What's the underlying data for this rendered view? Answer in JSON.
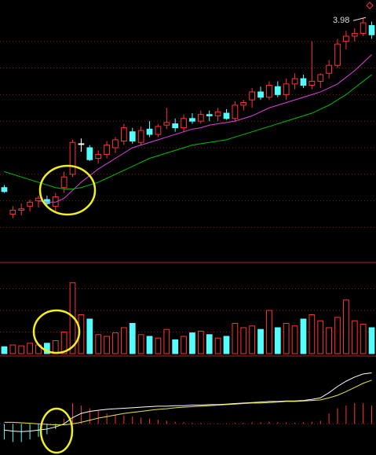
{
  "chart_data": [
    {
      "type": "candlestick",
      "up_color": "#ff3232",
      "down_color": "#54fcfc",
      "flat_color": "#ffffff",
      "open": [
        2.7,
        2.5,
        2.53,
        2.56,
        2.6,
        2.61,
        2.56,
        2.7,
        2.8,
        3.03,
        3.0,
        2.92,
        2.95,
        3.0,
        3.05,
        3.12,
        3.04,
        3.14,
        3.1,
        3.17,
        3.18,
        3.15,
        3.22,
        3.2,
        3.25,
        3.24,
        3.26,
        3.22,
        3.32,
        3.36,
        3.42,
        3.38,
        3.46,
        3.4,
        3.48,
        3.52,
        3.47,
        3.5,
        3.56,
        3.62,
        3.8,
        3.84,
        3.86,
        3.92
      ],
      "high": [
        2.72,
        2.56,
        2.58,
        2.61,
        2.64,
        2.64,
        2.66,
        2.82,
        3.06,
        3.07,
        3.02,
        2.98,
        3.05,
        3.08,
        3.18,
        3.15,
        3.16,
        3.2,
        3.18,
        3.3,
        3.22,
        3.25,
        3.26,
        3.28,
        3.28,
        3.3,
        3.29,
        3.35,
        3.36,
        3.45,
        3.46,
        3.5,
        3.5,
        3.52,
        3.56,
        3.55,
        3.8,
        3.56,
        3.66,
        3.82,
        3.88,
        3.9,
        3.98,
        3.95
      ],
      "low": [
        2.66,
        2.47,
        2.49,
        2.52,
        2.55,
        2.57,
        2.52,
        2.66,
        2.78,
        2.97,
        2.9,
        2.88,
        2.92,
        2.96,
        3.02,
        3.03,
        3.02,
        3.08,
        3.08,
        3.14,
        3.12,
        3.12,
        3.18,
        3.18,
        3.2,
        3.2,
        3.21,
        3.2,
        3.28,
        3.3,
        3.36,
        3.36,
        3.38,
        3.36,
        3.44,
        3.45,
        3.44,
        3.45,
        3.52,
        3.6,
        3.74,
        3.8,
        3.84,
        3.82
      ],
      "close": [
        2.67,
        2.53,
        2.54,
        2.59,
        2.62,
        2.58,
        2.63,
        2.78,
        3.04,
        3.03,
        2.91,
        2.95,
        3.02,
        3.06,
        3.15,
        3.05,
        3.13,
        3.1,
        3.16,
        3.19,
        3.15,
        3.22,
        3.2,
        3.25,
        3.24,
        3.27,
        3.22,
        3.32,
        3.34,
        3.42,
        3.38,
        3.47,
        3.4,
        3.48,
        3.52,
        3.47,
        3.5,
        3.55,
        3.62,
        3.78,
        3.84,
        3.86,
        3.94,
        3.85
      ],
      "series": [
        {
          "color": "#e040e0",
          "values": [
            null,
            null,
            null,
            null,
            2.6,
            2.59,
            2.59,
            2.62,
            2.68,
            2.74,
            2.79,
            2.84,
            2.88,
            2.92,
            2.96,
            3.0,
            3.02,
            3.04,
            3.06,
            3.08,
            3.1,
            3.12,
            3.14,
            3.15,
            3.17,
            3.18,
            3.19,
            3.2,
            3.22,
            3.24,
            3.27,
            3.3,
            3.32,
            3.34,
            3.36,
            3.38,
            3.4,
            3.42,
            3.45,
            3.48,
            3.53,
            3.58,
            3.64,
            3.7
          ]
        },
        {
          "color": "#00c000",
          "values": [
            2.82,
            2.8,
            2.78,
            2.76,
            2.74,
            2.72,
            2.7,
            2.69,
            2.69,
            2.7,
            2.72,
            2.74,
            2.77,
            2.8,
            2.83,
            2.86,
            2.89,
            2.92,
            2.94,
            2.96,
            2.98,
            3.0,
            3.02,
            3.03,
            3.04,
            3.05,
            3.06,
            3.08,
            3.1,
            3.12,
            3.14,
            3.16,
            3.18,
            3.2,
            3.22,
            3.24,
            3.26,
            3.29,
            3.32,
            3.36,
            3.4,
            3.45,
            3.5,
            3.55
          ]
        }
      ],
      "annotation": {
        "value": 3.98,
        "label": "3.98"
      },
      "ylim": [
        2.16,
        4.1
      ],
      "yticks": [
        2.4,
        2.6,
        2.8,
        3.0,
        3.2,
        3.4,
        3.6,
        3.8
      ],
      "grid": true
    },
    {
      "type": "bar",
      "values": [
        8,
        10,
        9,
        12,
        10,
        12,
        15,
        25,
        82,
        45,
        40,
        22,
        20,
        24,
        30,
        35,
        22,
        20,
        18,
        28,
        16,
        20,
        24,
        26,
        22,
        18,
        20,
        35,
        30,
        32,
        28,
        50,
        30,
        35,
        32,
        40,
        45,
        38,
        30,
        42,
        62,
        38,
        34,
        30
      ],
      "ylim": [
        0,
        100
      ],
      "yticks": [
        25,
        50,
        75
      ],
      "grid": true
    },
    {
      "type": "macd",
      "up_color": "#ff3232",
      "down_color": "#54fcfc",
      "values": [
        -0.03,
        -0.035,
        -0.035,
        -0.03,
        -0.025,
        -0.02,
        -0.01,
        0.01,
        0.04,
        0.035,
        0.03,
        0.025,
        0.02,
        0.018,
        0.016,
        0.014,
        0.012,
        0.01,
        0.008,
        0.006,
        0.004,
        0.003,
        0.002,
        0.002,
        0.001,
        0.001,
        0.001,
        0.002,
        0.002,
        0.003,
        0.003,
        0.004,
        0.003,
        0.003,
        0.002,
        0.003,
        0.004,
        0.006,
        0.02,
        0.03,
        0.035,
        0.04,
        0.04,
        0.035
      ],
      "series": [
        {
          "color": "#ffffff",
          "values": [
            -0.012,
            -0.014,
            -0.015,
            -0.014,
            -0.012,
            -0.01,
            -0.006,
            0.0,
            0.012,
            0.02,
            0.024,
            0.026,
            0.028,
            0.029,
            0.03,
            0.031,
            0.032,
            0.033,
            0.034,
            0.034,
            0.035,
            0.035,
            0.036,
            0.036,
            0.037,
            0.037,
            0.038,
            0.039,
            0.04,
            0.041,
            0.042,
            0.043,
            0.043,
            0.044,
            0.044,
            0.045,
            0.047,
            0.05,
            0.06,
            0.072,
            0.082,
            0.09,
            0.096,
            0.098
          ]
        },
        {
          "color": "#e8e840",
          "values": [
            0.003,
            0.003,
            0.002,
            0.001,
            0.0,
            -0.001,
            -0.002,
            -0.002,
            0.0,
            0.003,
            0.007,
            0.011,
            0.014,
            0.017,
            0.02,
            0.022,
            0.024,
            0.026,
            0.028,
            0.029,
            0.031,
            0.032,
            0.033,
            0.034,
            0.035,
            0.036,
            0.037,
            0.038,
            0.039,
            0.04,
            0.04,
            0.041,
            0.042,
            0.043,
            0.043,
            0.044,
            0.045,
            0.046,
            0.05,
            0.055,
            0.062,
            0.07,
            0.078,
            0.084
          ]
        }
      ],
      "ylim": [
        -0.06,
        0.12
      ],
      "yticks": [
        0
      ]
    }
  ]
}
